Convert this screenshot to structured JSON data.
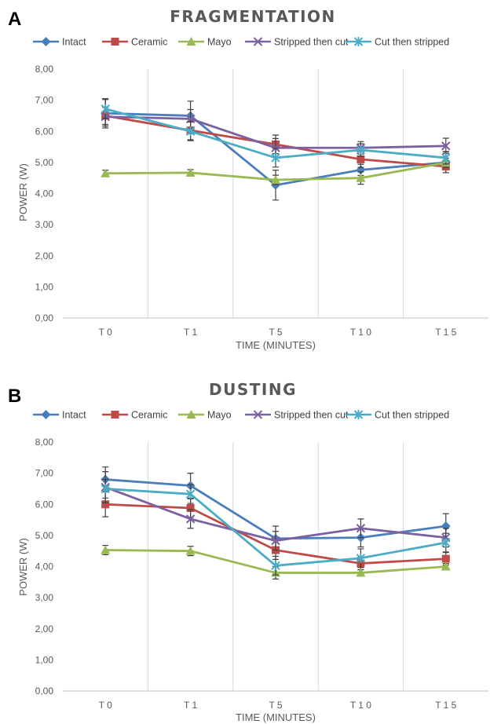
{
  "chart_data": [
    {
      "type": "line",
      "panel": "A",
      "title": "FRAGMENTATION",
      "xlabel": "TIME (MINUTES)",
      "ylabel": "POWER (W)",
      "categories": [
        "T0",
        "T1",
        "T5",
        "T10",
        "T15"
      ],
      "category_labels": [
        "T 0",
        "T 1",
        "T 5",
        "T 1 0",
        "T 1 5"
      ],
      "ylim": [
        0,
        8
      ],
      "yticks": [
        0,
        1,
        2,
        3,
        4,
        5,
        6,
        7,
        8
      ],
      "ytick_labels": [
        "0,00",
        "1,00",
        "2,00",
        "3,00",
        "4,00",
        "5,00",
        "6,00",
        "7,00",
        "8,00"
      ],
      "grid": "vertical",
      "legend_position": "top",
      "series": [
        {
          "name": "Intact",
          "color": "#4a7ebb",
          "marker": "diamond",
          "values": [
            6.58,
            6.5,
            4.27,
            4.76,
            5.0
          ],
          "errors": [
            0.47,
            0.47,
            0.48,
            0.18,
            0.33
          ]
        },
        {
          "name": "Ceramic",
          "color": "#be4b48",
          "marker": "square",
          "values": [
            6.5,
            6.03,
            5.58,
            5.1,
            4.87
          ],
          "errors": [
            0.28,
            0.3,
            0.3,
            0.26,
            0.2
          ]
        },
        {
          "name": "Mayo",
          "color": "#98b954",
          "marker": "triangle",
          "values": [
            4.65,
            4.67,
            4.44,
            4.5,
            4.99
          ],
          "errors": [
            0.1,
            0.1,
            0.15,
            0.2,
            0.15
          ]
        },
        {
          "name": "Stripped then cut",
          "color": "#7d60a0",
          "marker": "x",
          "values": [
            6.47,
            6.4,
            5.47,
            5.47,
            5.53
          ],
          "errors": [
            0.3,
            0.3,
            0.3,
            0.2,
            0.25
          ]
        },
        {
          "name": "Cut then stripped",
          "color": "#4bacc6",
          "marker": "star",
          "values": [
            6.72,
            6.0,
            5.15,
            5.4,
            5.15
          ],
          "errors": [
            0.3,
            0.3,
            0.3,
            0.2,
            0.2
          ]
        }
      ]
    },
    {
      "type": "line",
      "panel": "B",
      "title": "DUSTING",
      "xlabel": "TIME (MINUTES)",
      "ylabel": "POWER (W)",
      "categories": [
        "T0",
        "T1",
        "T5",
        "T10",
        "T15"
      ],
      "category_labels": [
        "T 0",
        "T 1",
        "T 5",
        "T 1 0",
        "T 1 5"
      ],
      "ylim": [
        0,
        8
      ],
      "yticks": [
        0,
        1,
        2,
        3,
        4,
        5,
        6,
        7,
        8
      ],
      "ytick_labels": [
        "0,00",
        "1,00",
        "2,00",
        "3,00",
        "4,00",
        "5,00",
        "6,00",
        "7,00",
        "8,00"
      ],
      "grid": "vertical",
      "legend_position": "top",
      "series": [
        {
          "name": "Intact",
          "color": "#4a7ebb",
          "marker": "diamond",
          "values": [
            6.8,
            6.6,
            4.9,
            4.93,
            5.3
          ],
          "errors": [
            0.4,
            0.4,
            0.4,
            0.3,
            0.4
          ]
        },
        {
          "name": "Ceramic",
          "color": "#be4b48",
          "marker": "square",
          "values": [
            6.0,
            5.88,
            4.53,
            4.1,
            4.25
          ],
          "errors": [
            0.4,
            0.3,
            0.3,
            0.2,
            0.2
          ]
        },
        {
          "name": "Mayo",
          "color": "#98b954",
          "marker": "triangle",
          "values": [
            4.53,
            4.5,
            3.8,
            3.8,
            4.0
          ],
          "errors": [
            0.15,
            0.15,
            0.2,
            0.1,
            0.1
          ]
        },
        {
          "name": "Stripped then cut",
          "color": "#7d60a0",
          "marker": "x",
          "values": [
            6.55,
            5.53,
            4.83,
            5.23,
            4.93
          ],
          "errors": [
            0.5,
            0.3,
            0.3,
            0.3,
            0.3
          ]
        },
        {
          "name": "Cut then stripped",
          "color": "#4bacc6",
          "marker": "star",
          "values": [
            6.5,
            6.33,
            4.03,
            4.27,
            4.77
          ],
          "errors": [
            0.3,
            0.3,
            0.3,
            0.3,
            0.3
          ]
        }
      ]
    }
  ]
}
